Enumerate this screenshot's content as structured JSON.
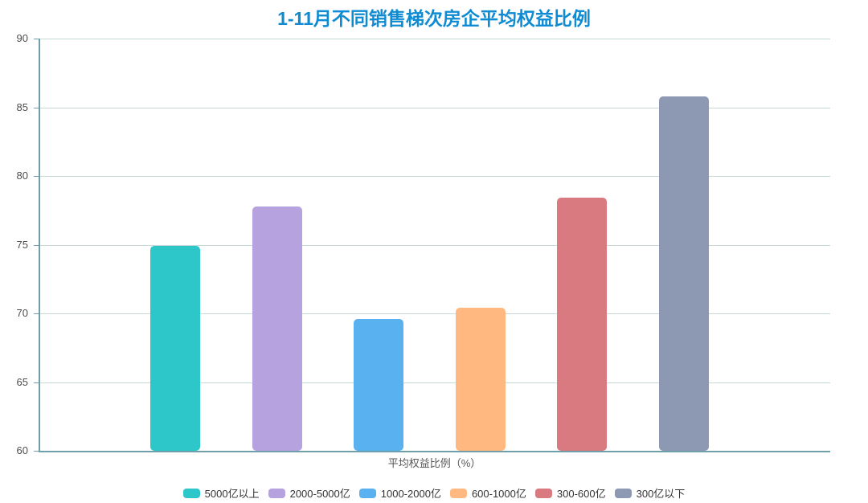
{
  "title": "1-11月不同销售梯次房企平均权益比例",
  "chart_data": {
    "type": "bar",
    "title": "1-11月不同销售梯次房企平均权益比例",
    "categories": [
      "平均权益比例（%）"
    ],
    "series": [
      {
        "name": "5000亿以上",
        "color": "#2ec7c9",
        "values": [
          74.9
        ]
      },
      {
        "name": "2000-5000亿",
        "color": "#b6a2de",
        "values": [
          77.8
        ]
      },
      {
        "name": "1000-2000亿",
        "color": "#5ab1ef",
        "values": [
          69.6
        ]
      },
      {
        "name": "600-1000亿",
        "color": "#ffb980",
        "values": [
          70.4
        ]
      },
      {
        "name": "300-600亿",
        "color": "#d87a80",
        "values": [
          78.4
        ]
      },
      {
        "name": "300亿以下",
        "color": "#8d98b3",
        "values": [
          85.8
        ]
      }
    ],
    "xlabel": "平均权益比例（%）",
    "ylabel": "",
    "ylim": [
      60,
      90
    ],
    "yticks": [
      60,
      65,
      70,
      75,
      80,
      85,
      90
    ],
    "grid": true,
    "legend_position": "bottom"
  },
  "colors": {
    "title": "#0e8bd2",
    "axis_line": "#6f9faa",
    "grid_line": "#c5dad7",
    "tick_label": "#4d4d4d",
    "axis_name_label": "#555555",
    "legend_label": "#333333",
    "background": "#ffffff"
  }
}
